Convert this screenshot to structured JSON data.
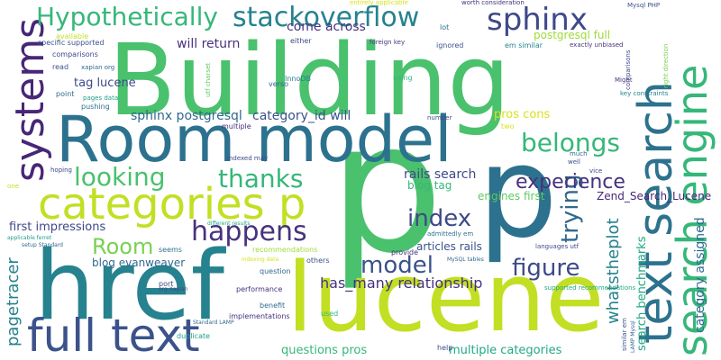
{
  "palette": {
    "deep_purple": "#482677",
    "dark_purple": "#46327e",
    "indigo": "#3e4989",
    "slate_blue": "#3b528b",
    "steel_blue": "#31688e",
    "teal_blue": "#2c728e",
    "teal": "#26828e",
    "sea_green": "#1f9e89",
    "jade": "#22a884",
    "green": "#35b779",
    "leaf": "#4ac16d",
    "grass": "#5ec962",
    "lime": "#7ad151",
    "yellow_green": "#a0da39",
    "chartreuse": "#c2df23",
    "yellow": "#d8e219",
    "gold": "#fde725"
  },
  "words": [
    {
      "id": "building",
      "text": "Building",
      "color": "#4ac16d"
    },
    {
      "id": "p-large",
      "text": "p",
      "color": "#4ac16d"
    },
    {
      "id": "p-second",
      "text": "p",
      "color": "#2c728e"
    },
    {
      "id": "lucene",
      "text": "lucene",
      "color": "#c2df23"
    },
    {
      "id": "href",
      "text": "href",
      "color": "#26828e"
    },
    {
      "id": "room-model",
      "text": "Room model",
      "color": "#2c728e"
    },
    {
      "id": "categories-p",
      "text": "categories p",
      "color": "#c2df23"
    },
    {
      "id": "full-text",
      "text": "full text",
      "color": "#3b528b"
    },
    {
      "id": "text-search",
      "text": "text search",
      "color": "#2c728e"
    },
    {
      "id": "search-engine",
      "text": "search engine",
      "color": "#35b779"
    },
    {
      "id": "systems",
      "text": "systems",
      "color": "#482677"
    },
    {
      "id": "hypothetically",
      "text": "Hypothetically",
      "color": "#35b779"
    },
    {
      "id": "stackoverflow",
      "text": "stackoverflow",
      "color": "#26828e"
    },
    {
      "id": "sphinx",
      "text": "sphinx",
      "color": "#3e4989"
    },
    {
      "id": "looking",
      "text": "looking",
      "color": "#4ac16d"
    },
    {
      "id": "thanks",
      "text": "thanks",
      "color": "#35b779"
    },
    {
      "id": "belongs",
      "text": "belongs",
      "color": "#35b779"
    },
    {
      "id": "index",
      "text": "index",
      "color": "#3e4989"
    },
    {
      "id": "happens",
      "text": "happens",
      "color": "#46327e"
    },
    {
      "id": "room",
      "text": "Room",
      "color": "#7ad151"
    },
    {
      "id": "model",
      "text": "model",
      "color": "#3b528b"
    },
    {
      "id": "figure",
      "text": "figure",
      "color": "#3e4989"
    },
    {
      "id": "trying",
      "text": "trying",
      "color": "#31688e"
    },
    {
      "id": "experience",
      "text": "experience",
      "color": "#46327e"
    },
    {
      "id": "whatstheplot",
      "text": "whatstheplot",
      "color": "#26828e"
    },
    {
      "id": "search-benchmarks",
      "text": "search benchmarks",
      "color": "#22a884"
    },
    {
      "id": "category-assigned",
      "text": "category assigned",
      "color": "#31688e"
    },
    {
      "id": "pagetracer",
      "text": "pagetracer",
      "color": "#26828e"
    },
    {
      "id": "has-many-relationship",
      "text": "has_many relationship",
      "color": "#46327e"
    },
    {
      "id": "come-across",
      "text": "come across",
      "color": "#46327e"
    },
    {
      "id": "will-return",
      "text": "will return",
      "color": "#46327e"
    },
    {
      "id": "tag-lucene",
      "text": "tag lucene",
      "color": "#3e4989"
    },
    {
      "id": "sphinx-postgresql",
      "text": "sphinx postgresql",
      "color": "#31688e"
    },
    {
      "id": "category-id-will",
      "text": "category_id will",
      "color": "#3b528b"
    },
    {
      "id": "postgresql-full",
      "text": "postgresql full",
      "color": "#a0da39"
    },
    {
      "id": "pros-cons",
      "text": "pros cons",
      "color": "#d8e219"
    },
    {
      "id": "rails-search",
      "text": "rails search",
      "color": "#3e4989"
    },
    {
      "id": "blog-tag",
      "text": "blog tag",
      "color": "#35b779"
    },
    {
      "id": "engines-first",
      "text": "engines first",
      "color": "#5ec962"
    },
    {
      "id": "articles-rails",
      "text": "articles rails",
      "color": "#3b528b"
    },
    {
      "id": "zend-search-lucene",
      "text": "Zend_Search_Lucene",
      "color": "#482677"
    },
    {
      "id": "first-impressions",
      "text": "first impressions",
      "color": "#3e4989"
    },
    {
      "id": "blog-evanweaver",
      "text": "blog evanweaver",
      "color": "#31688e"
    },
    {
      "id": "questions-pros",
      "text": "questions pros",
      "color": "#35b779"
    },
    {
      "id": "multiple-categories",
      "text": "multiple categories",
      "color": "#22a884"
    },
    {
      "id": "entirely-applicable",
      "text": "entirely applicable",
      "color": "#d8e219"
    },
    {
      "id": "worth-consideration",
      "text": "worth consideration",
      "color": "#46327e"
    },
    {
      "id": "mysql-php",
      "text": "Mysql PHP",
      "color": "#3b528b"
    },
    {
      "id": "specific-supported",
      "text": "specific supported",
      "color": "#3b528b"
    },
    {
      "id": "available",
      "text": "available",
      "color": "#c2df23"
    },
    {
      "id": "comparisons",
      "text": "comparisons",
      "color": "#3e4989"
    },
    {
      "id": "either",
      "text": "either",
      "color": "#3e4989"
    },
    {
      "id": "lot",
      "text": "lot",
      "color": "#2c728e"
    },
    {
      "id": "em-similar",
      "text": "em similar",
      "color": "#26828e"
    },
    {
      "id": "foreign-key",
      "text": "foreign key",
      "color": "#46327e"
    },
    {
      "id": "ignored",
      "text": "ignored",
      "color": "#3b528b"
    },
    {
      "id": "exactly-unbiased",
      "text": "exactly unbiased",
      "color": "#46327e"
    },
    {
      "id": "right-direction",
      "text": "right direction",
      "color": "#7ad151"
    },
    {
      "id": "comparisons-v",
      "text": "comparisons",
      "color": "#3e4989"
    },
    {
      "id": "read",
      "text": "read",
      "color": "#3b528b"
    },
    {
      "id": "xapian-org",
      "text": "xapian org",
      "color": "#31688e"
    },
    {
      "id": "utf-charset",
      "text": "utf charset",
      "color": "#5ec962"
    },
    {
      "id": "verso",
      "text": "verso",
      "color": "#31688e"
    },
    {
      "id": "innodb",
      "text": "InnoDB",
      "color": "#26828e"
    },
    {
      "id": "using",
      "text": "using",
      "color": "#35b779"
    },
    {
      "id": "might",
      "text": "Might",
      "color": "#46327e"
    },
    {
      "id": "key-constraints",
      "text": "key constraints",
      "color": "#26828e"
    },
    {
      "id": "point",
      "text": "point",
      "color": "#31688e"
    },
    {
      "id": "pages-data",
      "text": "pages data",
      "color": "#1f9e89"
    },
    {
      "id": "pushing",
      "text": "pushing",
      "color": "#2c728e"
    },
    {
      "id": "number",
      "text": "number",
      "color": "#3e4989"
    },
    {
      "id": "two",
      "text": "two",
      "color": "#d8e219"
    },
    {
      "id": "multiple",
      "text": "multiple",
      "color": "#46327e"
    },
    {
      "id": "hoping",
      "text": "hoping",
      "color": "#3e4989"
    },
    {
      "id": "indexed-may",
      "text": "indexed may",
      "color": "#3e4989"
    },
    {
      "id": "much",
      "text": "much",
      "color": "#31688e"
    },
    {
      "id": "well",
      "text": "well",
      "color": "#3b528b"
    },
    {
      "id": "one",
      "text": "one",
      "color": "#c2df23"
    },
    {
      "id": "vice",
      "text": "vice",
      "color": "#3e4989"
    },
    {
      "id": "port",
      "text": "port",
      "color": "#3e4989"
    },
    {
      "id": "seems",
      "text": "seems",
      "color": "#2c728e"
    },
    {
      "id": "different-results",
      "text": "different results",
      "color": "#22a884"
    },
    {
      "id": "admittedly-em",
      "text": "admittedly em",
      "color": "#2c728e"
    },
    {
      "id": "provide",
      "text": "provide",
      "color": "#46327e"
    },
    {
      "id": "languages-utf",
      "text": "languages utf",
      "color": "#3e4989"
    },
    {
      "id": "setup-standard",
      "text": "setup Standard",
      "color": "#31688e"
    },
    {
      "id": "applicable-ferret",
      "text": "applicable ferret",
      "color": "#1f9e89"
    },
    {
      "id": "recommendations",
      "text": "recommendations",
      "color": "#a0da39"
    },
    {
      "id": "indexing-data",
      "text": "indexing data",
      "color": "#d8e219"
    },
    {
      "id": "mysql-tables",
      "text": "MySQL tables",
      "color": "#31688e"
    },
    {
      "id": "others",
      "text": "others",
      "color": "#3b528b"
    },
    {
      "id": "supported-recommendations",
      "text": "supported recommendations",
      "color": "#22a884"
    },
    {
      "id": "question",
      "text": "question",
      "color": "#31688e"
    },
    {
      "id": "performance",
      "text": "performance",
      "color": "#46327e"
    },
    {
      "id": "org-xapian",
      "text": "org Xapian",
      "color": "#3e4989"
    },
    {
      "id": "benefit",
      "text": "benefit",
      "color": "#31688e"
    },
    {
      "id": "used",
      "text": "used",
      "color": "#35b779"
    },
    {
      "id": "implementations",
      "text": "implementations",
      "color": "#46327e"
    },
    {
      "id": "standard-lamp",
      "text": "Standard LAMP",
      "color": "#31688e"
    },
    {
      "id": "duplicate",
      "text": "duplicate",
      "color": "#1f9e89"
    },
    {
      "id": "help",
      "text": "help",
      "color": "#3e4989"
    },
    {
      "id": "similar-em",
      "text": "similar em",
      "color": "#3b528b"
    },
    {
      "id": "lamp-mysql",
      "text": "LAMP Mysql",
      "color": "#31688e"
    }
  ]
}
